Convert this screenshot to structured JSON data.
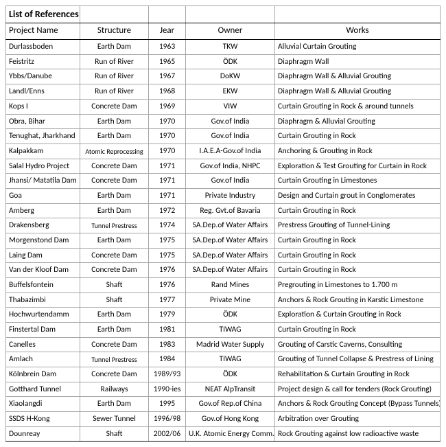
{
  "title": "List of References",
  "columns": [
    "Project Name",
    "Structure",
    "Jear",
    "Owner",
    "Works"
  ],
  "rows": [
    [
      "Durlassboden",
      "Earth Dam",
      "1963",
      "TKW",
      "Alluvial Curtain Grouting"
    ],
    [
      "Feistritz",
      "Run of River",
      "1965",
      "ÖDK",
      "Diaphragm Wall"
    ],
    [
      "Ybbs/Danube",
      "Run of River",
      "1967",
      "DoKW",
      "Diaphragm Wall & Alluvial Grouting"
    ],
    [
      "Landl/Enns",
      "Run of River",
      "1968",
      "EKW",
      "Diaphragm Wall & Alluvial Grouting"
    ],
    [
      "Kops I",
      "Concrete Dam",
      "1969",
      "VIW",
      "Curtain Grouting in Rock & around tunnels"
    ],
    [
      "Obra, Bihar",
      "Earth Dam",
      "1970",
      "Gov.of India",
      "Diaphragm & Alluvial Grouting"
    ],
    [
      "Tenughat, Jharkhand",
      "Earth Dam",
      "1970",
      "Gov.of India",
      "Curtain Grouting in Rock"
    ],
    [
      "Kalpakkam",
      "Atomic Reprocessing",
      "1970",
      "I.A.E.A-Gov.of India",
      "Anchoring & Grouting in Rock"
    ],
    [
      "Salal Hydro Project",
      "Concrete Dam",
      "1971",
      "Gov.of India, NHPC",
      "Exploration & Test Grouting for Curtain in Rock"
    ],
    [
      "Jhansi/ Matatila Dam",
      "Concrete Dam",
      "1971",
      "Gov.of India",
      "Curtain Grouting in Limestones"
    ],
    [
      "Goa",
      "Earth Dam",
      "1971",
      "Private Industry",
      "Design and Curtain grout in Conglomerates"
    ],
    [
      "Amberg",
      "Earth Dam",
      "1972",
      "Reg. Gvt.of Bavaria",
      "Curtain Grouting in Rock"
    ],
    [
      "Drakensberg",
      "Tunnel Prestress",
      "1974",
      "SA.Dep.of Water Affairs",
      "Prestress Grouting of Tunnel-Lining"
    ],
    [
      "Morgenstond Dam",
      "Earth Dam",
      "1975",
      "SA.Dep.of Water Affairs",
      "Curtain Grouting in Rock"
    ],
    [
      "Laing Dam",
      "Concrete Dam",
      "1975",
      "SA.Dep.of Water Affairs",
      "Curtain Grouting in Rock"
    ],
    [
      "Van der Kloof Dam",
      "Concrete Dam",
      "1976",
      "SA.Dep.of Water Affairs",
      "Curtain Grouting in Rock"
    ],
    [
      "Buffelsfontein",
      "Shaft",
      "1976",
      "Rand Mines",
      "Pregrouting in Limestones to 1.700 m"
    ],
    [
      "Thabazimbi",
      "Shaft",
      "1977",
      "Private Mine",
      "Anchors & Rock Grouting in Karstic Limestone"
    ],
    [
      "Hochwurtendamm",
      "Earth Dam",
      "1979",
      "ÖDK",
      "Exploration & Curtain Grouting in Rock"
    ],
    [
      "Finstertal Dam",
      "Earth Dam",
      "1981",
      "TIWAG",
      "Curtain Grouting in Rock"
    ],
    [
      "Canelles",
      "Concrete Dam",
      "1983",
      "Madrid Water Supply",
      "Grouting of Carstic Caverns, Consulting"
    ],
    [
      "Amlach",
      "Tunnel Prestress",
      "1984",
      "TIWAG",
      "Grouting of Tunnel Collapse & Prestress of Lining"
    ],
    [
      "Kölnbrein Dam",
      "Concrete Dam",
      "1989/93",
      "ÖDK",
      "Rehabilitation & Curtain Grouting in Rock"
    ],
    [
      "Gotthard Tunnel",
      "Railways",
      "1990-ies",
      "NEAT AlpTransit",
      "Project design & call for tenders (Rock Grouting)"
    ],
    [
      "Xiaolangdi",
      "Earth Dam",
      "1995",
      "Gov.of Rep.of China",
      "Anchors & Rock Grouting Concept (Bypass Tunnels)"
    ],
    [
      "SSDS H-Kong",
      "Sewer Tunnel",
      "1996/98",
      "Gov.of Hong Kong",
      "Arbitration over Grouting"
    ],
    [
      "Dounreay",
      "Shaft",
      "2002/06",
      "U.K. Atomic Energy Comm.",
      "Rock Grouting against low radioactive waste"
    ]
  ]
}
